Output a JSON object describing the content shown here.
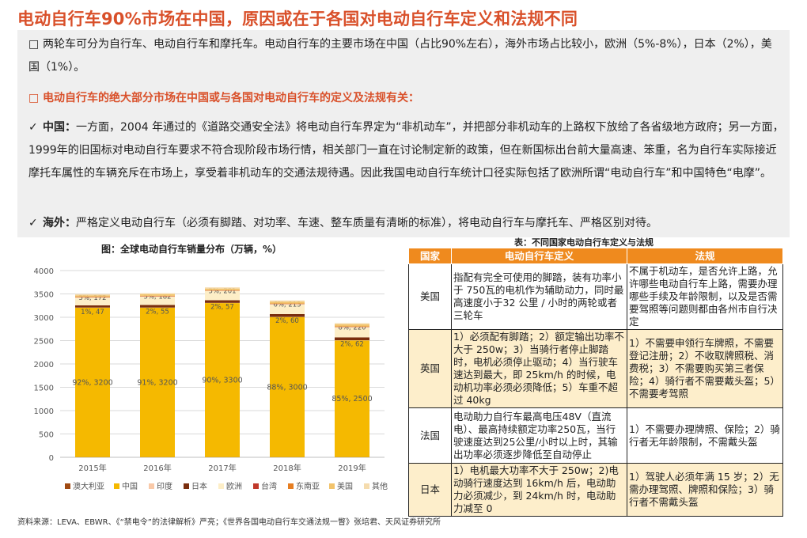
{
  "title": "电动自行车90%市场在中国，原因或在于各国对电动自行车定义和法规不同",
  "intro": {
    "p1_marker": "□",
    "p1": "两轮车可分为自行车、电动自行车和摩托车。电动自行车的主要市场在中国（占比90%左右），海外市场占比较小，欧洲（5%-8%），日本（2%），美国（1%）。",
    "p2_marker": "□",
    "p2": "电动自行车的绝大部分市场在中国或与各国对电动自行车的定义及法规有关：",
    "p3_marker": "✓",
    "p3_label": "中国：",
    "p3": "一方面，2004 年通过的《道路交通安全法》将电动自行车界定为“非机动车”，并把部分非机动车的上路权下放给了各省级地方政府；另一方面，1999年的旧国标对电动自行车要求不符合现阶段市场行情，相关部门一直在讨论制定新的政策，但在新国标出台前大量高速、笨重，名为自行车实际接近摩托车属性的车辆充斥在市场上，享受着非机动车的交通法规待遇。因此我国电动自行车统计口径实际包括了欧洲所谓“电动自行车”和中国特色“电摩”。",
    "p4_marker": "✓",
    "p4_label": "海外：",
    "p4": "严格定义电动自行车（必须有脚踏、对功率、车速、整车质量有清晰的标准），将电动自行车与摩托车、严格区别对待。"
  },
  "chart_title": "图：全球电动自行车销量分布（万辆，%）",
  "chart_data": {
    "type": "bar",
    "stacked": true,
    "title": "图：全球电动自行车销量分布（万辆，%）",
    "categories": [
      "2015年",
      "2016年",
      "2017年",
      "2018年",
      "2019年"
    ],
    "ylim": [
      0,
      4000
    ],
    "yticks": [
      0,
      500,
      1000,
      1500,
      2000,
      2500,
      3000,
      3500,
      4000
    ],
    "grid": true,
    "legend_position": "bottom",
    "series": [
      {
        "name": "澳大利亚",
        "color": "#a04a12",
        "values": [
          4,
          4,
          4,
          4,
          4
        ]
      },
      {
        "name": "中国",
        "color": "#f5b900",
        "values": [
          3200,
          3200,
          3300,
          3000,
          2500
        ],
        "labels": [
          "92%, 3200",
          "91%, 3200",
          "90%, 3300",
          "88%, 3000",
          "85%, 2500"
        ]
      },
      {
        "name": "印度",
        "color": "#f9c9a8",
        "values": [
          4,
          4,
          4,
          4,
          4
        ]
      },
      {
        "name": "日本",
        "color": "#7a2e0e",
        "values": [
          47,
          55,
          57,
          60,
          62
        ],
        "labels": [
          "1%, 47",
          "2%, 55",
          "2%, 57",
          "2%, 60",
          "2%, 62"
        ]
      },
      {
        "name": "欧洲",
        "color": "#fdeec7",
        "values": [
          172,
          182,
          201,
          213,
          220
        ],
        "labels": [
          "5%, 172",
          "5%, 182",
          "5%, 201",
          "6%, 213",
          "8%, 220"
        ]
      },
      {
        "name": "台湾",
        "color": "#c0392b",
        "values": [
          6,
          6,
          6,
          6,
          6
        ]
      },
      {
        "name": "东南亚",
        "color": "#e67e22",
        "values": [
          8,
          8,
          8,
          8,
          8
        ]
      },
      {
        "name": "美国",
        "color": "#f2c36b",
        "values": [
          30,
          32,
          35,
          40,
          45
        ]
      },
      {
        "name": "其他",
        "color": "#f5dcae",
        "values": [
          25,
          25,
          25,
          25,
          25
        ]
      }
    ]
  },
  "table_title": "表：不同国家电动自行车定义与法规",
  "table": {
    "headers": [
      "国家",
      "电动自行车定义",
      "法规"
    ],
    "rows": [
      {
        "country": "美国",
        "definition": "指配有完全可使用的脚踏，装有功率小于 750瓦的电机作为辅助动力，同时最高速度小于32 公里 / 小时的两轮或者三轮车",
        "regulation": "不属于机动车，是否允许上路，允许哪些电动自行车上路，需要办理哪些手续及年龄限制，以及是否需要驾照等问题则都由各州市自行决定"
      },
      {
        "country": "英国",
        "definition": "1）必须配有脚踏；2）额定输出功率不大于 250w；3）当骑行者停止脚踏时，电机必须停止驱动；4）当行驶车速达到最大，即 25km/h 的时候，电动机功率必须必须降低；5）车重不超过 40kg",
        "regulation": "1）不需要申领行车牌照，不需要登记注册；2）不收取牌照税、消费税；3）不需要购买第三者保险；4）骑行者不需要戴头盔；5）不需要考驾照"
      },
      {
        "country": "法国",
        "definition": "电动助力自行车最高电压48V（直流电）、最高持续额定功率250瓦，当行驶速度达到25公里/小时以上时，其输出功率必须逐步降低至自动停止",
        "regulation": "1）不需要办理牌照、保险；2）骑行者无年龄限制，不需戴头盔"
      },
      {
        "country": "日本",
        "definition": "1）电机最大功率不大于 250w；2)电动骑行速度达到 16km/h 后，电动助力必须减少，到 24km/h 时，电动助力减至 0",
        "regulation": "1）驾驶人必须年满 15 岁；2）无需办理驾照、牌照和保险；3）骑行者不需戴头盔"
      }
    ]
  },
  "source": "资料来源：LEVA、EBWR、《“禁电令”的法律解析》严亮；《世界各国电动自行车交通法规一瞥》张培君、天风证券研究所"
}
